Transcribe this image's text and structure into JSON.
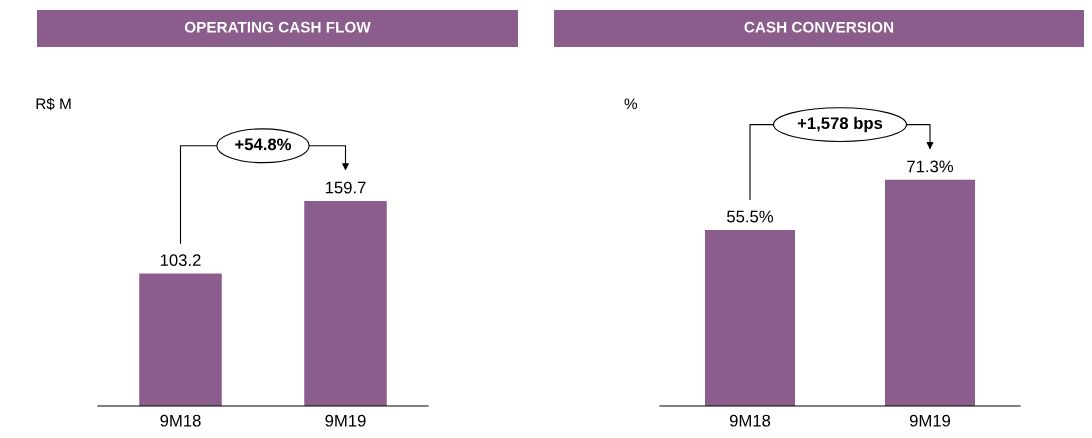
{
  "chart_data": [
    {
      "type": "bar",
      "title": "OPERATING CASH FLOW",
      "ylabel": "R$ M",
      "categories": [
        "9M18",
        "9M19"
      ],
      "values": [
        103.2,
        159.7
      ],
      "color": "#8b5d8c",
      "data_labels": true,
      "annotations": [
        "+54.8%"
      ]
    },
    {
      "type": "bar",
      "title": "CASH CONVERSION",
      "ylabel": "%",
      "categories": [
        "9M18",
        "9M19"
      ],
      "values": [
        55.5,
        71.3
      ],
      "value_labels": [
        "55.5%",
        "71.3%"
      ],
      "color": "#8b5d8c",
      "annotations": [
        "+1,578 bps"
      ]
    }
  ]
}
